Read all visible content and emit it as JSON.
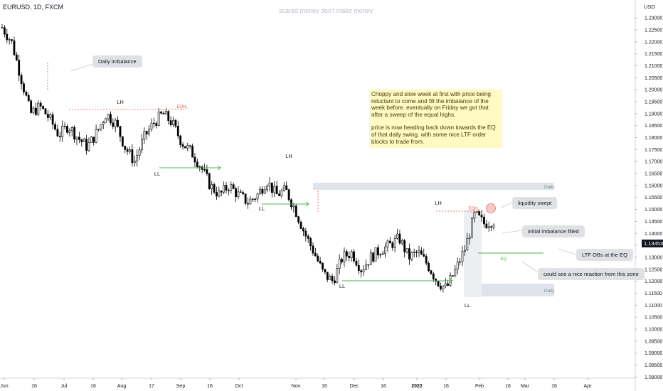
{
  "header": {
    "symbol": "EURUSD, 1D, FXCM",
    "watermark": "scared money don't make money",
    "currency": "USD"
  },
  "note": {
    "paragraph1": "Choppy and slow week at first with price being reluctant to come and fill the imbalance of the week before. eventually on Friday we got that after a sweep of the equal highs.",
    "paragraph2": "price is now heading back down towards the EQ of that daily swing. with some nice LTF order blocks to trade from."
  },
  "callouts": {
    "daily_imbalance": "Daily imbalance",
    "liquidity_swept": "liquidity swept",
    "initial_imbalance": "initial imbalance filled",
    "ltf_obs": "LTF OBs at the EQ",
    "nice_reaction": "could see a nice reaction from this zone"
  },
  "last_price": "1.13453",
  "colors": {
    "candle": "#000000",
    "green_line": "#4caf50",
    "red_line": "#ef5350",
    "zone": "#e0e3eb",
    "note_bg": "#fff9c4",
    "callout_bg": "#dfe1e5"
  },
  "chart_data": {
    "type": "candlestick",
    "ylim": [
      1.0795,
      1.2345
    ],
    "y_ticks": [
      "1.23000",
      "1.22500",
      "1.22000",
      "1.21500",
      "1.21000",
      "1.20500",
      "1.20000",
      "1.19500",
      "1.19000",
      "1.18500",
      "1.18000",
      "1.17500",
      "1.17000",
      "1.16500",
      "1.16000",
      "1.15500",
      "1.15000",
      "1.14500",
      "1.14000",
      "1.13500",
      "1.13000",
      "1.12500",
      "1.12000",
      "1.11500",
      "1.11000",
      "1.10500",
      "1.10000",
      "1.09500",
      "1.09000",
      "1.08500",
      "1.08000"
    ],
    "x_ticks": [
      "Jun",
      "16",
      "Jul",
      "16",
      "Aug",
      "17",
      "Sep",
      "16",
      "Oct",
      "Nov",
      "16",
      "Dec",
      "16",
      "2022",
      "16",
      "Feb",
      "16",
      "Mar",
      "16",
      "Apr"
    ],
    "labels": [
      "LH",
      "LH",
      "LH",
      "LL",
      "LL",
      "LL",
      "LL",
      "EQH",
      "EQH",
      "EQ"
    ],
    "zone_labels": [
      "Daily",
      "Daily"
    ],
    "anchors": [
      [
        1.226,
        1.22,
        1.205,
        1.19,
        1.193,
        1.188,
        1.181,
        1.185,
        1.18,
        1.176,
        1.182,
        1.19,
        1.186,
        1.176,
        1.17,
        1.18,
        1.186,
        1.19,
        1.186,
        1.178,
        1.174,
        1.168,
        1.16,
        1.156,
        1.16,
        1.156,
        1.153,
        1.156,
        1.162,
        1.156,
        1.158,
        1.15,
        1.14,
        1.132,
        1.123,
        1.12,
        1.13,
        1.132,
        1.125,
        1.13,
        1.133,
        1.135,
        1.138,
        1.13,
        1.132,
        1.127,
        1.12,
        1.117,
        1.125,
        1.134,
        1.148,
        1.144,
        1.1453
      ]
    ]
  }
}
